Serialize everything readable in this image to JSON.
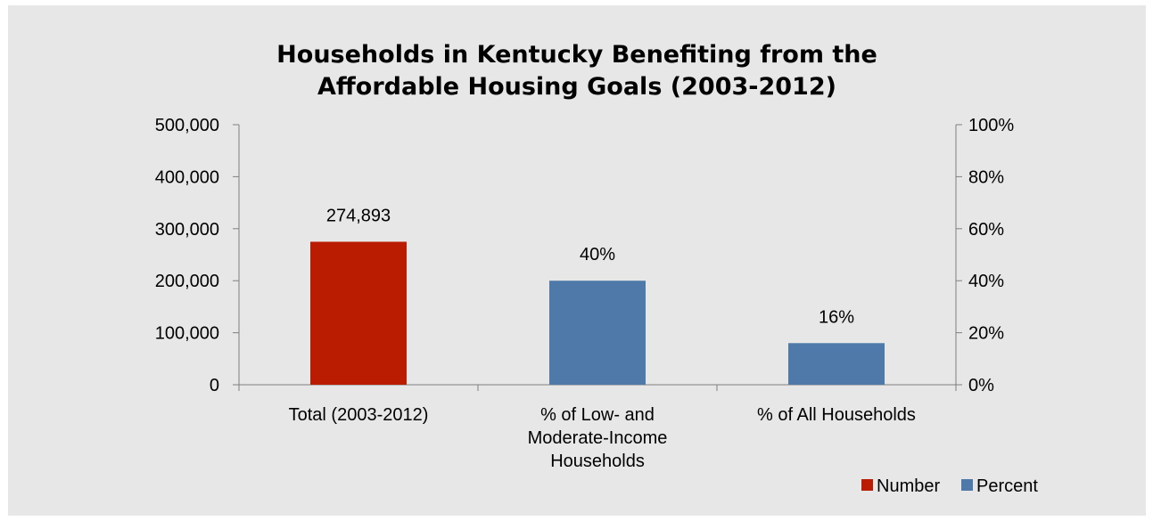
{
  "chart_data": {
    "type": "bar",
    "title_lines": [
      "Households in Kentucky Benefiting from the",
      "Affordable Housing Goals (2003-2012)"
    ],
    "categories": [
      [
        "Total (2003-2012)"
      ],
      [
        "% of Low- and",
        "Moderate-Income",
        "Households"
      ],
      [
        "% of All Households"
      ]
    ],
    "series": [
      {
        "name": "Number",
        "axis": "left",
        "color": "#b91c00",
        "values": [
          274893,
          null,
          null
        ],
        "labels": [
          "274,893",
          null,
          null
        ]
      },
      {
        "name": "Percent",
        "axis": "right",
        "color": "#4e79a8",
        "values": [
          null,
          40,
          16
        ],
        "labels": [
          null,
          "40%",
          "16%"
        ]
      }
    ],
    "y_left": {
      "lim": [
        0,
        500000
      ],
      "ticks": [
        0,
        100000,
        200000,
        300000,
        400000,
        500000
      ],
      "tick_labels": [
        "0",
        "100,000",
        "200,000",
        "300,000",
        "400,000",
        "500,000"
      ]
    },
    "y_right": {
      "lim": [
        0,
        100
      ],
      "ticks": [
        0,
        20,
        40,
        60,
        80,
        100
      ],
      "tick_labels": [
        "0%",
        "20%",
        "40%",
        "60%",
        "80%",
        "100%"
      ]
    },
    "grid": false,
    "legend_position": "bottom-right",
    "background_color": "#e7e7e8",
    "axis_color": "#7f7f7f"
  }
}
